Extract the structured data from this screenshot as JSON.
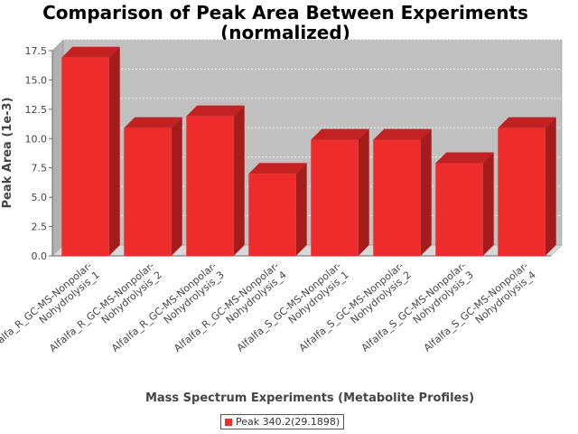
{
  "chart_data": {
    "type": "bar",
    "title_lines": [
      "Comparison of Peak Area Between Experiments",
      "(normalized)"
    ],
    "xlabel": "Mass Spectrum Experiments (Metabolite Profiles)",
    "ylabel": "Peak Area (1e-3)",
    "ylim": [
      0,
      17.5
    ],
    "yticks": [
      "0.0",
      "2.5",
      "5.0",
      "7.5",
      "10.0",
      "12.5",
      "15.0",
      "17.5"
    ],
    "grid": true,
    "legend_position": "bottom-center",
    "categories": [
      [
        "Alfalfa_R_GC-MS-Nonpolar-",
        "Nohydrolysis_1"
      ],
      [
        "Alfalfa_R_GC-MS-Nonpolar-",
        "Nohydrolysis_2"
      ],
      [
        "Alfalfa_R_GC-MS-Nonpolar-",
        "Nohydrolysis_3"
      ],
      [
        "Alfalfa_R_GC-MS-Nonpolar-",
        "Nohydrolysis_4"
      ],
      [
        "Alfalfa_S_GC-MS-Nonpolar-",
        "Nohydrolysis_1"
      ],
      [
        "Alfalfa_S_GC-MS-Nonpolar-",
        "Nohydrolysis_2"
      ],
      [
        "Alfalfa_S_GC-MS-Nonpolar-",
        "Nohydrolysis_3"
      ],
      [
        "Alfalfa_S_GC-MS-Nonpolar-",
        "Nohydrolysis_4"
      ]
    ],
    "series": [
      {
        "name": "Peak 340.2(29.1898)",
        "color": "#ee2c2c",
        "values": [
          16.9,
          10.9,
          11.9,
          7.0,
          9.9,
          9.9,
          7.9,
          10.9
        ]
      }
    ]
  }
}
